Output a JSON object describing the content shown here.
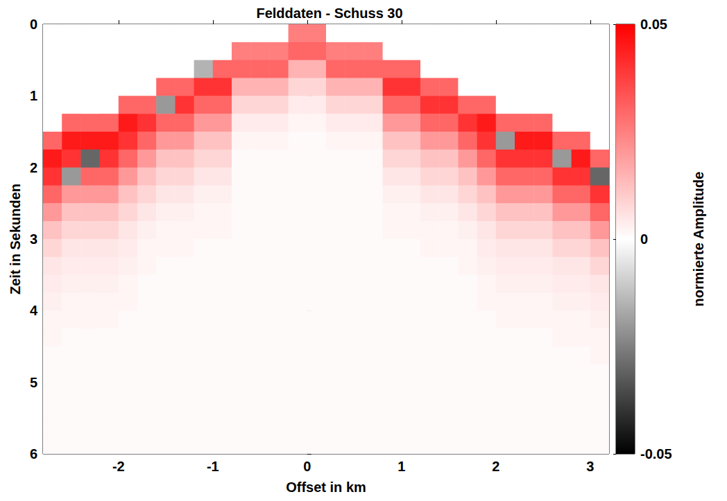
{
  "chart_data": {
    "type": "heatmap",
    "title": "Felddaten - Schuss 30",
    "x_label": "Offset in km",
    "y_label": "Zeit in Sekunden",
    "xlim": [
      -2.8,
      3.2
    ],
    "xticks": [
      -2,
      -1,
      0,
      1,
      2,
      3
    ],
    "ylim": [
      6,
      0
    ],
    "yticks": [
      0,
      1,
      2,
      3,
      4,
      5,
      6
    ],
    "grid": false,
    "x": [
      -2.7,
      -2.5,
      -2.3,
      -2.1,
      -1.9,
      -1.7,
      -1.5,
      -1.3,
      -1.1,
      -0.9,
      -0.7,
      -0.5,
      -0.3,
      -0.1,
      0.1,
      0.3,
      0.5,
      0.7,
      0.9,
      1.1,
      1.3,
      1.5,
      1.7,
      1.9,
      2.1,
      2.3,
      2.5,
      2.7,
      2.9,
      3.1
    ],
    "y": [
      0.125,
      0.375,
      0.625,
      0.875,
      1.125,
      1.375,
      1.625,
      1.875,
      2.125,
      2.375,
      2.625,
      2.875,
      3.125,
      3.375,
      3.625,
      3.875,
      4.125,
      4.375,
      4.625,
      4.875,
      5.125,
      5.375,
      5.625,
      5.875
    ],
    "values": [
      [
        0,
        0,
        0,
        0,
        0,
        0,
        0,
        0,
        0,
        0,
        0,
        0,
        0,
        0.025,
        0.025,
        0,
        0,
        0,
        0,
        0,
        0,
        0,
        0,
        0,
        0,
        0,
        0,
        0,
        0,
        0
      ],
      [
        0,
        0,
        0,
        0,
        0,
        0,
        0,
        0,
        0,
        0,
        0.025,
        0.025,
        0.025,
        0.03,
        0.03,
        0.025,
        0.025,
        0.025,
        0,
        0,
        0,
        0,
        0,
        0,
        0,
        0,
        0,
        0,
        0,
        0
      ],
      [
        0,
        0,
        0,
        0,
        0,
        0,
        0,
        0,
        -0.015,
        0.03,
        0.03,
        0.03,
        0.03,
        0.015,
        0.015,
        0.03,
        0.03,
        0.03,
        0.03,
        0.03,
        0,
        0,
        0,
        0,
        0,
        0,
        0,
        0,
        0,
        0
      ],
      [
        0,
        0,
        0,
        0,
        0,
        0,
        0.03,
        0.03,
        0.04,
        0.04,
        0.015,
        0.015,
        0.015,
        0.008,
        0.008,
        0.015,
        0.015,
        0.015,
        0.04,
        0.04,
        0.03,
        0.03,
        0,
        0,
        0,
        0,
        0,
        0,
        0,
        0
      ],
      [
        0,
        0,
        0,
        0,
        0.03,
        0.03,
        -0.02,
        0.04,
        0.03,
        0.03,
        0.008,
        0.008,
        0.008,
        0.004,
        0.004,
        0.008,
        0.008,
        0.008,
        0.03,
        0.03,
        0.04,
        0.04,
        0.03,
        0.03,
        0,
        0,
        0,
        0,
        0,
        0
      ],
      [
        0,
        0.03,
        0.03,
        0.03,
        0.045,
        0.04,
        0.03,
        0.03,
        0.02,
        0.02,
        0.004,
        0.004,
        0.004,
        0.002,
        0.002,
        0.004,
        0.004,
        0.004,
        0.02,
        0.02,
        0.03,
        0.03,
        0.04,
        0.045,
        0.03,
        0.03,
        0.03,
        0,
        0,
        0
      ],
      [
        0.03,
        0.045,
        0.045,
        0.045,
        0.04,
        0.03,
        0.02,
        0.02,
        0.012,
        0.012,
        0.002,
        0.002,
        0.002,
        0.001,
        0.001,
        0.002,
        0.002,
        0.002,
        0.012,
        0.012,
        0.02,
        0.02,
        0.03,
        0.04,
        -0.02,
        0.045,
        0.045,
        0.03,
        0.03,
        0
      ],
      [
        0.045,
        0.04,
        -0.03,
        0.04,
        0.03,
        0.02,
        0.012,
        0.012,
        0.008,
        0.008,
        0.001,
        0.001,
        0.001,
        0.001,
        0.001,
        0.001,
        0.001,
        0.001,
        0.008,
        0.008,
        0.012,
        0.012,
        0.02,
        0.03,
        0.04,
        0.04,
        0.04,
        -0.02,
        0.045,
        0.03
      ],
      [
        0.04,
        -0.02,
        0.03,
        0.03,
        0.02,
        0.012,
        0.008,
        0.008,
        0.005,
        0.005,
        0.001,
        0.001,
        0.001,
        0.001,
        0.001,
        0.001,
        0.001,
        0.001,
        0.005,
        0.005,
        0.008,
        0.008,
        0.012,
        0.02,
        0.03,
        0.03,
        0.03,
        0.04,
        0.04,
        -0.03
      ],
      [
        0.03,
        0.02,
        0.02,
        0.02,
        0.012,
        0.008,
        0.005,
        0.005,
        0.003,
        0.003,
        0.001,
        0.001,
        0.001,
        0.001,
        0.001,
        0.001,
        0.001,
        0.001,
        0.003,
        0.003,
        0.005,
        0.005,
        0.008,
        0.012,
        0.02,
        0.02,
        0.02,
        0.03,
        0.03,
        0.04
      ],
      [
        0.02,
        0.012,
        0.012,
        0.012,
        0.008,
        0.005,
        0.003,
        0.003,
        0.002,
        0.002,
        0.001,
        0.001,
        0.001,
        0.001,
        0.001,
        0.001,
        0.001,
        0.001,
        0.002,
        0.002,
        0.003,
        0.003,
        0.005,
        0.008,
        0.012,
        0.012,
        0.012,
        0.02,
        0.02,
        0.03
      ],
      [
        0.012,
        0.008,
        0.008,
        0.008,
        0.005,
        0.003,
        0.002,
        0.002,
        0.002,
        0.002,
        0.001,
        0.001,
        0.001,
        0.001,
        0.001,
        0.001,
        0.001,
        0.001,
        0.002,
        0.002,
        0.002,
        0.002,
        0.003,
        0.005,
        0.008,
        0.008,
        0.008,
        0.012,
        0.012,
        0.02
      ],
      [
        0.008,
        0.005,
        0.005,
        0.005,
        0.004,
        0.002,
        0.002,
        0.002,
        0.001,
        0.001,
        0.001,
        0.001,
        0.001,
        0.001,
        0.001,
        0.001,
        0.001,
        0.001,
        0.001,
        0.001,
        0.002,
        0.002,
        0.002,
        0.004,
        0.005,
        0.005,
        0.005,
        0.008,
        0.008,
        0.012
      ],
      [
        0.005,
        0.004,
        0.004,
        0.004,
        0.003,
        0.002,
        0.001,
        0.001,
        0.001,
        0.001,
        0.001,
        0.001,
        0.001,
        0.001,
        0.001,
        0.001,
        0.001,
        0.001,
        0.001,
        0.001,
        0.001,
        0.001,
        0.002,
        0.003,
        0.004,
        0.004,
        0.004,
        0.005,
        0.005,
        0.008
      ],
      [
        0.004,
        0.003,
        0.003,
        0.003,
        0.002,
        0.001,
        0.001,
        0.001,
        0.001,
        0.001,
        0.001,
        0.001,
        0.001,
        0.001,
        0.001,
        0.001,
        0.001,
        0.001,
        0.001,
        0.001,
        0.001,
        0.001,
        0.001,
        0.002,
        0.003,
        0.003,
        0.003,
        0.004,
        0.004,
        0.005
      ],
      [
        0.003,
        0.002,
        0.002,
        0.002,
        0.002,
        0.001,
        0.001,
        0.001,
        0.001,
        0.001,
        0.001,
        0.001,
        0.001,
        0.001,
        0.001,
        0.001,
        0.001,
        0.001,
        0.001,
        0.001,
        0.001,
        0.001,
        0.001,
        0.002,
        0.002,
        0.002,
        0.002,
        0.003,
        0.003,
        0.004
      ],
      [
        0.002,
        0.002,
        0.002,
        0.002,
        0.001,
        0.001,
        0.001,
        0.001,
        0.001,
        0.001,
        0.001,
        0.001,
        0.001,
        0.001,
        0.001,
        0.001,
        0.001,
        0.001,
        0.001,
        0.001,
        0.001,
        0.001,
        0.001,
        0.001,
        0.002,
        0.002,
        0.002,
        0.002,
        0.002,
        0.003
      ],
      [
        0.002,
        0.001,
        0.001,
        0.001,
        0.001,
        0.001,
        0.001,
        0.001,
        0.001,
        0.001,
        0.001,
        0.001,
        0.001,
        0.001,
        0.001,
        0.001,
        0.001,
        0.001,
        0.001,
        0.001,
        0.001,
        0.001,
        0.001,
        0.001,
        0.001,
        0.001,
        0.001,
        0.002,
        0.002,
        0.002
      ],
      [
        0.001,
        0.001,
        0.001,
        0.001,
        0.001,
        0.001,
        0.001,
        0.001,
        0.001,
        0.001,
        0.001,
        0.001,
        0.001,
        0.001,
        0.001,
        0.001,
        0.001,
        0.001,
        0.001,
        0.001,
        0.001,
        0.001,
        0.001,
        0.001,
        0.001,
        0.001,
        0.001,
        0.001,
        0.001,
        0.002
      ],
      [
        0.001,
        0.001,
        0.001,
        0.001,
        0.001,
        0.001,
        0.001,
        0.001,
        0.001,
        0.001,
        0.001,
        0.001,
        0.001,
        0.001,
        0.001,
        0.001,
        0.001,
        0.001,
        0.001,
        0.001,
        0.001,
        0.001,
        0.001,
        0.001,
        0.001,
        0.001,
        0.001,
        0.001,
        0.001,
        0.001
      ],
      [
        0.001,
        0.001,
        0.001,
        0.001,
        0.001,
        0.001,
        0.001,
        0.001,
        0.001,
        0.001,
        0.001,
        0.001,
        0.001,
        0.001,
        0.001,
        0.001,
        0.001,
        0.001,
        0.001,
        0.001,
        0.001,
        0.001,
        0.001,
        0.001,
        0.001,
        0.001,
        0.001,
        0.001,
        0.001,
        0.001
      ],
      [
        0.001,
        0.001,
        0.001,
        0.001,
        0.001,
        0.001,
        0.001,
        0.001,
        0.001,
        0.001,
        0.001,
        0.001,
        0.001,
        0.001,
        0.001,
        0.001,
        0.001,
        0.001,
        0.001,
        0.001,
        0.001,
        0.001,
        0.001,
        0.001,
        0.001,
        0.001,
        0.001,
        0.001,
        0.001,
        0.001
      ],
      [
        0.001,
        0.001,
        0.001,
        0.001,
        0.001,
        0.001,
        0.001,
        0.001,
        0.001,
        0.001,
        0.001,
        0.001,
        0.001,
        0.001,
        0.001,
        0.001,
        0.001,
        0.001,
        0.001,
        0.001,
        0.001,
        0.001,
        0.001,
        0.001,
        0.001,
        0.001,
        0.001,
        0.001,
        0.001,
        0.001
      ],
      [
        0.001,
        0.001,
        0.001,
        0.001,
        0.001,
        0.001,
        0.001,
        0.001,
        0.001,
        0.001,
        0.001,
        0.001,
        0.001,
        0.001,
        0.001,
        0.001,
        0.001,
        0.001,
        0.001,
        0.001,
        0.001,
        0.001,
        0.001,
        0.001,
        0.001,
        0.001,
        0.001,
        0.001,
        0.001,
        0.001
      ]
    ],
    "colorbar": {
      "label": "normierte Amplitude",
      "range": [
        -0.05,
        0.05
      ],
      "ticks": [
        -0.05,
        0,
        0.05
      ],
      "colors": [
        "#000000",
        "#ffffff",
        "#ff0000"
      ]
    }
  }
}
